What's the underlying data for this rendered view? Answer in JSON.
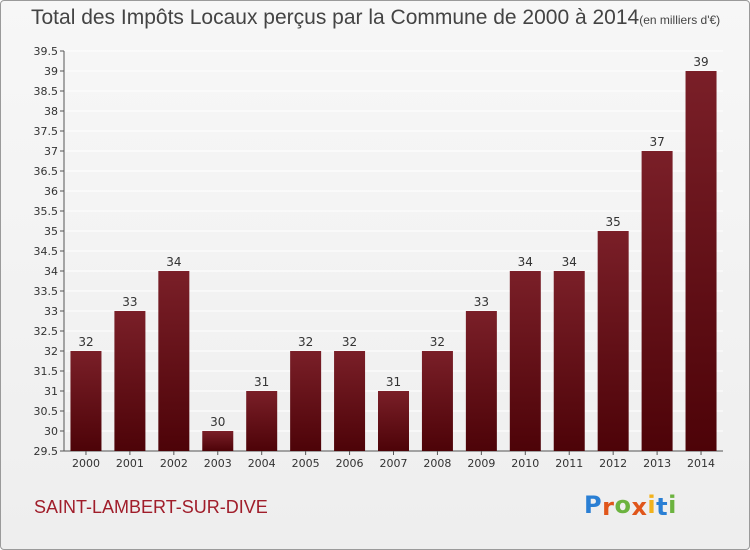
{
  "title": "Total des Impôts Locaux perçus par la Commune de 2000 à 2014",
  "title_unit": "(en milliers d'€)",
  "commune": "SAINT-LAMBERT-SUR-DIVE",
  "logo": {
    "letters": [
      "P",
      "r",
      "o",
      "x",
      "i",
      "t",
      "i"
    ],
    "colors": [
      "#2a7fd4",
      "#e0561b",
      "#6cb33f",
      "#e0561b",
      "#f2b21b",
      "#2a7fd4",
      "#6cb33f"
    ]
  },
  "colors": {
    "bar_top": "#7a1f28",
    "bar_bottom": "#4d0308",
    "grid": "#ffffff"
  },
  "chart_data": {
    "type": "bar",
    "title": "Total des Impôts Locaux perçus par la Commune de 2000 à 2014",
    "xlabel": "",
    "ylabel": "",
    "categories": [
      "2000",
      "2001",
      "2002",
      "2003",
      "2004",
      "2005",
      "2006",
      "2007",
      "2008",
      "2009",
      "2010",
      "2011",
      "2012",
      "2013",
      "2014"
    ],
    "values": [
      32,
      33,
      34,
      30,
      31,
      32,
      32,
      31,
      32,
      33,
      34,
      34,
      35,
      37,
      39
    ],
    "ylim": [
      29.5,
      39.5
    ],
    "yticks": [
      "29.5",
      "30",
      "30.5",
      "31",
      "31.5",
      "32",
      "32.5",
      "33",
      "33.5",
      "34",
      "34.5",
      "35",
      "35.5",
      "36",
      "36.5",
      "37",
      "37.5",
      "38",
      "38.5",
      "39",
      "39.5"
    ],
    "grid": true,
    "legend": "none"
  }
}
